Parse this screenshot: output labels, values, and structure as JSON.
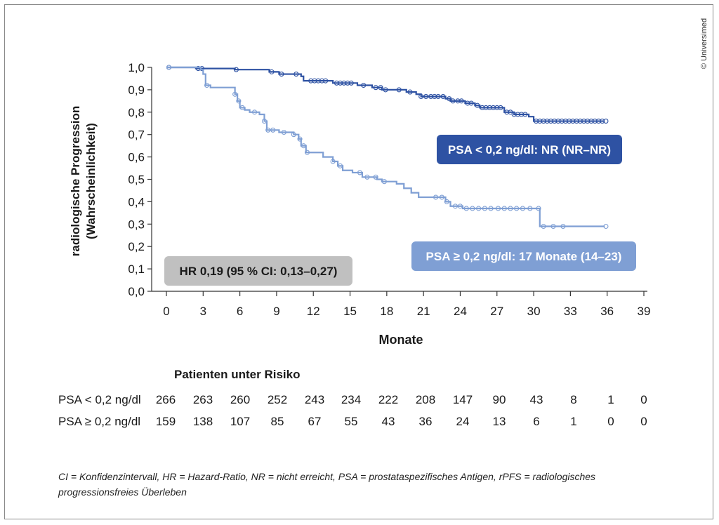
{
  "copyright": "© Universimed",
  "chart_data": {
    "type": "line",
    "subtype": "kaplan-meier",
    "ylabel_line1": "radiologische Progression",
    "ylabel_line2": "(Wahrscheinlichkeit)",
    "xlabel": "Monate",
    "xlim": [
      0,
      39
    ],
    "ylim": [
      0,
      1
    ],
    "xticks": [
      0,
      3,
      6,
      9,
      12,
      15,
      18,
      21,
      24,
      27,
      30,
      33,
      36,
      39
    ],
    "yticks": [
      "0,0",
      "0,1",
      "0,2",
      "0,3",
      "0,4",
      "0,5",
      "0,6",
      "0,7",
      "0,8",
      "0,9",
      "1,0"
    ],
    "series": [
      {
        "name": "PSA < 0,2 ng/dl: NR (NR–NR)",
        "color": "#2e52a3",
        "steps": [
          [
            0,
            1.0
          ],
          [
            2.4,
            0.995
          ],
          [
            5.6,
            0.99
          ],
          [
            8.4,
            0.98
          ],
          [
            9.2,
            0.97
          ],
          [
            11,
            0.96
          ],
          [
            11.2,
            0.94
          ],
          [
            13.6,
            0.93
          ],
          [
            15.6,
            0.92
          ],
          [
            16.8,
            0.91
          ],
          [
            17.6,
            0.9
          ],
          [
            19.6,
            0.89
          ],
          [
            20.4,
            0.88
          ],
          [
            20.8,
            0.87
          ],
          [
            22.8,
            0.86
          ],
          [
            23.2,
            0.85
          ],
          [
            24.4,
            0.84
          ],
          [
            25.2,
            0.83
          ],
          [
            25.6,
            0.82
          ],
          [
            27.6,
            0.8
          ],
          [
            28.4,
            0.79
          ],
          [
            29.6,
            0.78
          ],
          [
            30.0,
            0.76
          ],
          [
            35.8,
            0.76
          ]
        ],
        "censor": [
          0.2,
          2.6,
          2.9,
          5.7,
          8.6,
          9.4,
          10.6,
          11.8,
          12.1,
          12.4,
          12.7,
          13.0,
          13.9,
          14.2,
          14.5,
          14.8,
          15.1,
          16.1,
          17.1,
          17.5,
          17.9,
          19.0,
          19.9,
          20.8,
          21.2,
          21.6,
          21.9,
          22.2,
          22.6,
          23.1,
          23.4,
          23.8,
          24.1,
          24.6,
          24.9,
          25.4,
          25.8,
          26.1,
          26.4,
          26.7,
          27.0,
          27.3,
          27.8,
          28.1,
          28.4,
          28.7,
          29.0,
          29.3,
          30.2,
          30.5,
          30.8,
          31.1,
          31.4,
          31.7,
          32.0,
          32.3,
          32.6,
          32.9,
          33.2,
          33.5,
          33.8,
          34.1,
          34.4,
          34.7,
          35.0,
          35.3,
          35.6,
          35.9
        ],
        "label_color": "#2e52a3"
      },
      {
        "name": "PSA ≥ 0,2 ng/dl: 17 Monate (14–23)",
        "color": "#7f9fd4",
        "steps": [
          [
            0,
            1.0
          ],
          [
            2.8,
            0.99
          ],
          [
            3.0,
            0.97
          ],
          [
            3.2,
            0.92
          ],
          [
            3.6,
            0.91
          ],
          [
            5.6,
            0.88
          ],
          [
            5.8,
            0.85
          ],
          [
            6.0,
            0.82
          ],
          [
            6.4,
            0.81
          ],
          [
            6.8,
            0.8
          ],
          [
            7.6,
            0.79
          ],
          [
            8.0,
            0.76
          ],
          [
            8.2,
            0.72
          ],
          [
            9.2,
            0.71
          ],
          [
            10.4,
            0.7
          ],
          [
            10.8,
            0.68
          ],
          [
            11.0,
            0.65
          ],
          [
            11.4,
            0.62
          ],
          [
            12.8,
            0.6
          ],
          [
            13.6,
            0.58
          ],
          [
            14.0,
            0.56
          ],
          [
            14.4,
            0.54
          ],
          [
            15.2,
            0.53
          ],
          [
            16.0,
            0.51
          ],
          [
            17.2,
            0.5
          ],
          [
            17.6,
            0.49
          ],
          [
            18.8,
            0.48
          ],
          [
            19.4,
            0.46
          ],
          [
            20.0,
            0.44
          ],
          [
            20.6,
            0.42
          ],
          [
            22.4,
            0.42
          ],
          [
            22.8,
            0.4
          ],
          [
            23.2,
            0.38
          ],
          [
            24.2,
            0.37
          ],
          [
            30.4,
            0.37
          ],
          [
            30.5,
            0.29
          ],
          [
            35.8,
            0.29
          ]
        ],
        "censor": [
          0.2,
          3.3,
          5.6,
          5.9,
          6.2,
          7.2,
          8.0,
          8.3,
          8.7,
          9.6,
          10.4,
          10.9,
          11.2,
          11.5,
          13.6,
          14.2,
          15.8,
          16.4,
          17.1,
          17.8,
          22.0,
          22.5,
          22.9,
          23.6,
          24.0,
          24.5,
          25.0,
          25.5,
          26.0,
          26.5,
          27.1,
          27.6,
          28.1,
          28.6,
          29.1,
          29.7,
          30.4,
          30.8,
          31.6,
          32.4,
          35.9
        ],
        "label_color": "#7f9fd4"
      }
    ],
    "annotation": "HR 0,19 (95 % CI: 0,13–0,27)",
    "annotation_color": "#c0c0c0"
  },
  "risk_table": {
    "title": "Patienten unter Risiko",
    "rows": [
      {
        "label": "PSA < 0,2 ng/dl",
        "values": [
          "266",
          "263",
          "260",
          "252",
          "243",
          "234",
          "222",
          "208",
          "147",
          "90",
          "43",
          "8",
          "1",
          "0"
        ]
      },
      {
        "label": "PSA ≥ 0,2 ng/dl",
        "values": [
          "159",
          "138",
          "107",
          "85",
          "67",
          "55",
          "43",
          "36",
          "24",
          "13",
          "6",
          "1",
          "0",
          "0"
        ]
      }
    ]
  },
  "footnote": "CI = Konfidenzintervall, HR = Hazard-Ratio, NR = nicht erreicht, PSA = prostataspezifisches Antigen, rPFS = radiologisches progressionsfreies Überleben"
}
